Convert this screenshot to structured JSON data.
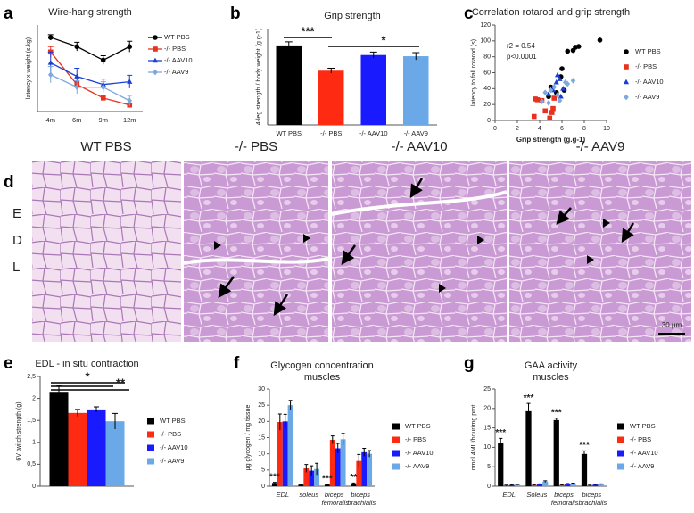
{
  "chart_data": [
    {
      "type": "line",
      "panel": "a",
      "title": "Wire-hang strength",
      "ylabel": "latency x weight (s.kg)",
      "categories": [
        "4m",
        "6m",
        "9m",
        "12m"
      ],
      "ylim": [
        0,
        1.6
      ],
      "legend": "right",
      "series": [
        {
          "name": "WT PBS",
          "color": "#000000",
          "marker": "circle",
          "values": [
            1.37,
            1.2,
            0.95,
            1.2
          ],
          "errors": [
            0.05,
            0.08,
            0.08,
            0.1
          ]
        },
        {
          "name": "-/- PBS",
          "color": "#e8321e",
          "marker": "square",
          "values": [
            1.1,
            0.5,
            0.25,
            0.12
          ],
          "errors": [
            0.1,
            0.05,
            0.03,
            0.03
          ]
        },
        {
          "name": "-/- AAV10",
          "color": "#1a3fd6",
          "marker": "triangle",
          "values": [
            0.9,
            0.65,
            0.5,
            0.55
          ],
          "errors": [
            0.2,
            0.15,
            0.1,
            0.12
          ]
        },
        {
          "name": "-/- AAV9",
          "color": "#7fa8dc",
          "marker": "diamond",
          "values": [
            0.68,
            0.45,
            0.45,
            0.2
          ],
          "errors": [
            0.15,
            0.12,
            0.1,
            0.1
          ]
        }
      ]
    },
    {
      "type": "bar",
      "panel": "b",
      "title": "Grip strength",
      "ylabel": "4-leg strength / body weight (g.g-1)",
      "categories": [
        "WT PBS",
        "-/- PBS",
        "-/- AAV10",
        "-/- AAV9"
      ],
      "values": [
        6.6,
        4.5,
        5.8,
        5.7
      ],
      "errors": [
        0.3,
        0.2,
        0.25,
        0.3
      ],
      "colors": [
        "#000000",
        "#ff2a12",
        "#1a1aff",
        "#6aa8e8"
      ],
      "ylim": [
        0,
        8
      ],
      "annotations": [
        "***",
        "*"
      ]
    },
    {
      "type": "scatter",
      "panel": "c",
      "title": "Correlation rotarod and grip strength",
      "xlabel": "Grip strength (g.g-1)",
      "ylabel": "latency to fall rotarod (s)",
      "xlim": [
        0,
        10
      ],
      "xticks": [
        0,
        2,
        4,
        6,
        8,
        10
      ],
      "ylim": [
        0,
        120
      ],
      "yticks": [
        0,
        20,
        40,
        60,
        80,
        100,
        120
      ],
      "legend": "right",
      "annotations": [
        "r2 = 0.54",
        "p<0.0001"
      ],
      "series": [
        {
          "name": "WT PBS",
          "color": "#000000",
          "marker": "circle",
          "x": [
            6.5,
            7,
            7.2,
            7.5,
            9.4,
            6,
            5.9,
            5,
            6.2,
            4.8,
            5.5
          ],
          "y": [
            87,
            88,
            92,
            93,
            101,
            65,
            55,
            42,
            38,
            30,
            35
          ]
        },
        {
          "name": "-/- PBS",
          "color": "#e8321e",
          "marker": "square",
          "x": [
            3.6,
            3.8,
            4.2,
            3.5,
            4.5,
            5.2,
            5.1,
            5.3,
            4.9
          ],
          "y": [
            27,
            26,
            25,
            5,
            12,
            15,
            10,
            28,
            3
          ]
        },
        {
          "name": "-/- AAV10",
          "color": "#1a3fd6",
          "marker": "triangle",
          "x": [
            5.6,
            5.5,
            5.8,
            6.1,
            5.2,
            4.8,
            5.9
          ],
          "y": [
            57,
            48,
            52,
            40,
            38,
            33,
            30
          ]
        },
        {
          "name": "-/- AAV9",
          "color": "#7fa8dc",
          "marker": "diamond",
          "x": [
            4.5,
            5,
            5.3,
            4.2,
            5.8,
            6.3,
            6.5,
            7,
            5.6,
            4.8
          ],
          "y": [
            35,
            38,
            42,
            24,
            25,
            48,
            46,
            50,
            32,
            22
          ]
        }
      ]
    },
    {
      "type": "bar",
      "panel": "e",
      "title": "EDL - in situ contraction",
      "ylabel": "6V twitch strength (g)",
      "ylim": [
        0,
        2.5
      ],
      "yticks": [
        0,
        {
          "value": 0.5,
          "label": "0,5"
        },
        1,
        {
          "value": 1.5,
          "label": "1,5"
        },
        2,
        {
          "value": 2.5,
          "label": "2,5"
        }
      ],
      "legend": "right",
      "annotations": [
        "*",
        "**"
      ],
      "series": [
        {
          "name": "WT PBS",
          "color": "#000000",
          "values": [
            2.15
          ],
          "errors": [
            0.15
          ]
        },
        {
          "name": "-/- PBS",
          "color": "#ff2a12",
          "values": [
            1.67
          ],
          "errors": [
            0.08
          ]
        },
        {
          "name": "-/- AAV10",
          "color": "#1a1aff",
          "values": [
            1.75
          ],
          "errors": [
            0.06
          ]
        },
        {
          "name": "-/- AAV9",
          "color": "#6aa8e8",
          "values": [
            1.48
          ],
          "errors": [
            0.18
          ]
        }
      ]
    },
    {
      "type": "bar",
      "panel": "f",
      "title": "Glycogen concentration",
      "subtitle": "muscles",
      "ylabel": "µg glycogen / mg tissue",
      "categories": [
        "EDL",
        "soleus",
        "biceps femoralis",
        "biceps brachialis"
      ],
      "ylim": [
        0,
        30
      ],
      "yticks": [
        0,
        5,
        10,
        15,
        20,
        25,
        30
      ],
      "legend": "right",
      "annotations": [
        "***",
        "***",
        "**"
      ],
      "series": [
        {
          "name": "WT PBS",
          "color": "#000000",
          "values": [
            1,
            0.5,
            0.5,
            0.8
          ],
          "errors": [
            0.2,
            0.1,
            0.1,
            0.2
          ]
        },
        {
          "name": "-/- PBS",
          "color": "#ff2a12",
          "values": [
            19.8,
            5.5,
            14.3,
            7.8
          ],
          "errors": [
            2.5,
            1.2,
            1.2,
            2
          ]
        },
        {
          "name": "-/- AAV10",
          "color": "#1a1aff",
          "values": [
            20,
            4.8,
            11.7,
            10.5
          ],
          "errors": [
            2.2,
            1.5,
            1.5,
            1.2
          ]
        },
        {
          "name": "-/- AAV9",
          "color": "#6aa8e8",
          "values": [
            25,
            5.3,
            14.5,
            10
          ],
          "errors": [
            1.5,
            1.8,
            1.8,
            1
          ]
        }
      ]
    },
    {
      "type": "bar",
      "panel": "g",
      "title": "GAA activity",
      "subtitle": "muscles",
      "ylabel": "nmol 4MU/hour/mg prot",
      "categories": [
        "EDL",
        "Soleus",
        "biceps femoralis",
        "biceps brachialis"
      ],
      "ylim": [
        0,
        25
      ],
      "yticks": [
        0,
        5,
        10,
        15,
        20,
        25
      ],
      "legend": "right",
      "annotations": [
        "***",
        "***",
        "***",
        "***"
      ],
      "series": [
        {
          "name": "WT PBS",
          "color": "#000000",
          "values": [
            11,
            19.3,
            17,
            8.3
          ],
          "errors": [
            1.3,
            2,
            0.5,
            0.8
          ]
        },
        {
          "name": "-/- PBS",
          "color": "#ff2a12",
          "values": [
            0.2,
            0.3,
            0.3,
            0.2
          ],
          "errors": [
            0.1,
            0.1,
            0.1,
            0.1
          ]
        },
        {
          "name": "-/- AAV10",
          "color": "#1a1aff",
          "values": [
            0.3,
            0.5,
            0.6,
            0.4
          ],
          "errors": [
            0.1,
            0.1,
            0.1,
            0.1
          ]
        },
        {
          "name": "-/- AAV9",
          "color": "#6aa8e8",
          "values": [
            0.4,
            1.2,
            0.7,
            0.5
          ],
          "errors": [
            0.1,
            0.2,
            0.1,
            0.1
          ]
        }
      ]
    }
  ],
  "histology": {
    "panel": "d",
    "groups": [
      "WT PBS",
      "-/- PBS",
      "-/- AAV10",
      "-/- AAV9"
    ],
    "muscle": [
      "E",
      "D",
      "L"
    ],
    "scale_bar": "30 µm"
  }
}
